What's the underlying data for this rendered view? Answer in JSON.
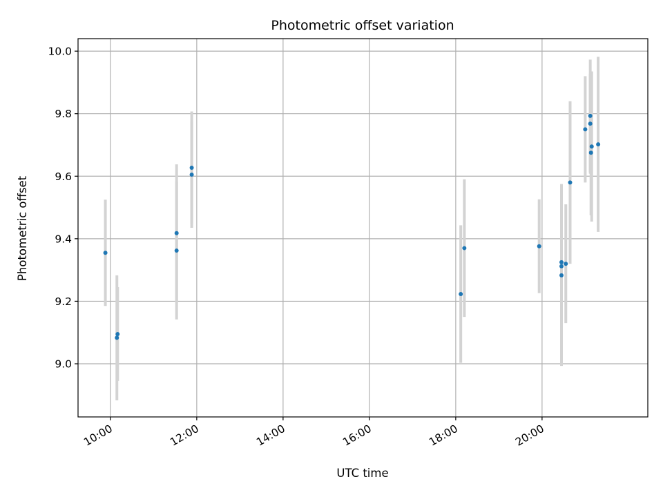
{
  "chart_data": {
    "type": "scatter",
    "title": "Photometric offset variation",
    "xlabel": "UTC time",
    "ylabel": "Photometric offset",
    "x_axis_kind": "time",
    "xlim": [
      "09:15",
      "22:27"
    ],
    "ylim": [
      8.83,
      10.04
    ],
    "grid": true,
    "x_ticks": [
      "10:00",
      "12:00",
      "14:00",
      "16:00",
      "18:00",
      "20:00"
    ],
    "y_ticks": [
      "9.0",
      "9.2",
      "9.4",
      "9.6",
      "9.8",
      "10.0"
    ],
    "marker_color": "#1f77b4",
    "errorbar_color": "#d3d3d3",
    "points": [
      {
        "x": "09:53",
        "y": 9.355,
        "err": 0.17
      },
      {
        "x": "10:09",
        "y": 9.083,
        "err": 0.2
      },
      {
        "x": "10:10",
        "y": 9.095,
        "err": 0.15
      },
      {
        "x": "11:32",
        "y": 9.418,
        "err": 0.22
      },
      {
        "x": "11:32",
        "y": 9.362,
        "err": 0.22
      },
      {
        "x": "11:53",
        "y": 9.627,
        "err": 0.18
      },
      {
        "x": "11:53",
        "y": 9.605,
        "err": 0.17
      },
      {
        "x": "18:07",
        "y": 9.223,
        "err": 0.22
      },
      {
        "x": "18:12",
        "y": 9.37,
        "err": 0.22
      },
      {
        "x": "19:56",
        "y": 9.376,
        "err": 0.15
      },
      {
        "x": "20:27",
        "y": 9.283,
        "err": 0.29
      },
      {
        "x": "20:27",
        "y": 9.312,
        "err": 0.26
      },
      {
        "x": "20:27",
        "y": 9.325,
        "err": 0.25
      },
      {
        "x": "20:33",
        "y": 9.32,
        "err": 0.19
      },
      {
        "x": "20:39",
        "y": 9.58,
        "err": 0.26
      },
      {
        "x": "21:00",
        "y": 9.75,
        "err": 0.17
      },
      {
        "x": "21:07",
        "y": 9.793,
        "err": 0.18
      },
      {
        "x": "21:07",
        "y": 9.768,
        "err": 0.16
      },
      {
        "x": "21:09",
        "y": 9.695,
        "err": 0.24
      },
      {
        "x": "21:08",
        "y": 9.675,
        "err": 0.2
      },
      {
        "x": "21:18",
        "y": 9.702,
        "err": 0.28
      }
    ]
  }
}
